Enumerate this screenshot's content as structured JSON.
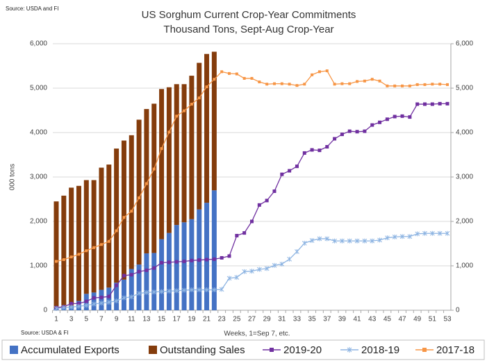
{
  "chart_data": {
    "type": "combo",
    "title": "US Sorghum Current Crop-Year Commitments",
    "subtitle": "Thousand Tons, Sept-Aug Crop-Year",
    "source": "Source: USDA and  FI",
    "source_note": "Source: USDA & FI",
    "y_label": "000 tons",
    "x_label": "Weeks, 1=Sep 7, etc.",
    "categories": [
      1,
      null,
      3,
      null,
      5,
      null,
      7,
      null,
      9,
      null,
      11,
      null,
      13,
      null,
      15,
      null,
      17,
      null,
      19,
      null,
      21,
      null,
      23,
      null,
      25,
      null,
      27,
      null,
      29,
      null,
      31,
      null,
      33,
      null,
      35,
      null,
      37,
      null,
      39,
      null,
      41,
      null,
      43,
      null,
      45,
      null,
      47,
      null,
      49,
      null,
      51,
      null,
      53
    ],
    "ylim": [
      0,
      6000
    ],
    "yticks": [
      0,
      {
        "value": 1000,
        "label": "1,000"
      },
      {
        "value": 2000,
        "label": "2,000"
      },
      {
        "value": 3000,
        "label": "3,000"
      },
      {
        "value": 4000,
        "label": "4,000"
      },
      {
        "value": 5000,
        "label": "5,000"
      },
      {
        "value": 6000,
        "label": "6,000"
      }
    ],
    "y2lim": [
      0,
      6000
    ],
    "y2ticks": [
      0,
      {
        "value": 1000,
        "label": "1,000"
      },
      {
        "value": 2000,
        "label": "2,000"
      },
      {
        "value": 3000,
        "label": "3,000"
      },
      {
        "value": 4000,
        "label": "4,000"
      },
      {
        "value": 5000,
        "label": "5,000"
      },
      {
        "value": 6000,
        "label": "6,000"
      }
    ],
    "grid": true,
    "legend": "bottom",
    "series": [
      {
        "name": "Accumulated Exports",
        "kind": "bar",
        "color": "#4472c4",
        "values": [
          50,
          70,
          100,
          210,
          370,
          400,
          460,
          510,
          620,
          690,
          930,
          1030,
          1280,
          1290,
          1600,
          1740,
          1920,
          1980,
          2050,
          2270,
          2420,
          2700,
          null,
          null,
          null,
          null,
          null,
          null,
          null,
          null,
          null,
          null,
          null,
          null,
          null,
          null,
          null,
          null,
          null,
          null,
          null,
          null,
          null,
          null,
          null,
          null,
          null,
          null,
          null,
          null,
          null,
          null,
          null
        ]
      },
      {
        "name": "Outstanding Sales",
        "kind": "bar",
        "color": "#843c0c",
        "values": [
          2400,
          2510,
          2660,
          2590,
          2560,
          2530,
          2750,
          2770,
          3020,
          3130,
          3010,
          3260,
          3250,
          3360,
          3380,
          3280,
          3170,
          3110,
          3230,
          3300,
          3350,
          3120,
          null,
          null,
          null,
          null,
          null,
          null,
          null,
          null,
          null,
          null,
          null,
          null,
          null,
          null,
          null,
          null,
          null,
          null,
          null,
          null,
          null,
          null,
          null,
          null,
          null,
          null,
          null,
          null,
          null,
          null,
          null
        ]
      },
      {
        "name": "2019-20",
        "kind": "line",
        "marker": "square",
        "color": "#7030a0",
        "values": [
          60,
          80,
          150,
          150,
          200,
          280,
          290,
          310,
          560,
          780,
          800,
          870,
          900,
          950,
          1070,
          1080,
          1090,
          1100,
          1120,
          1130,
          1140,
          1150,
          1180,
          1220,
          1680,
          1740,
          2000,
          2370,
          2470,
          2680,
          3060,
          3140,
          3240,
          3540,
          3610,
          3600,
          3680,
          3860,
          3960,
          4030,
          4020,
          4030,
          4170,
          4230,
          4300,
          4360,
          4370,
          4350,
          4640,
          4640,
          4640,
          4650,
          4650
        ]
      },
      {
        "name": "2018-19",
        "kind": "line",
        "marker": "star",
        "color": "#8db4e2",
        "values": [
          40,
          60,
          70,
          90,
          110,
          140,
          160,
          180,
          210,
          280,
          300,
          380,
          400,
          410,
          420,
          430,
          440,
          450,
          460,
          460,
          460,
          460,
          470,
          720,
          740,
          870,
          880,
          920,
          940,
          1010,
          1040,
          1150,
          1320,
          1510,
          1570,
          1610,
          1610,
          1560,
          1560,
          1560,
          1560,
          1560,
          1560,
          1580,
          1630,
          1650,
          1660,
          1660,
          1720,
          1730,
          1730,
          1730,
          1730
        ]
      },
      {
        "name": "2017-18",
        "kind": "line",
        "marker": "square",
        "color": "#f79646",
        "values": [
          1100,
          1140,
          1200,
          1260,
          1340,
          1410,
          1480,
          1550,
          1790,
          2090,
          2230,
          2530,
          2850,
          3180,
          3640,
          4010,
          4370,
          4490,
          4640,
          4780,
          5030,
          5200,
          5370,
          5330,
          5320,
          5220,
          5220,
          5140,
          5090,
          5100,
          5100,
          5090,
          5060,
          5090,
          5300,
          5370,
          5390,
          5090,
          5100,
          5100,
          5150,
          5160,
          5200,
          5160,
          5050,
          5050,
          5050,
          5050,
          5080,
          5080,
          5090,
          5090,
          5080
        ]
      }
    ]
  }
}
